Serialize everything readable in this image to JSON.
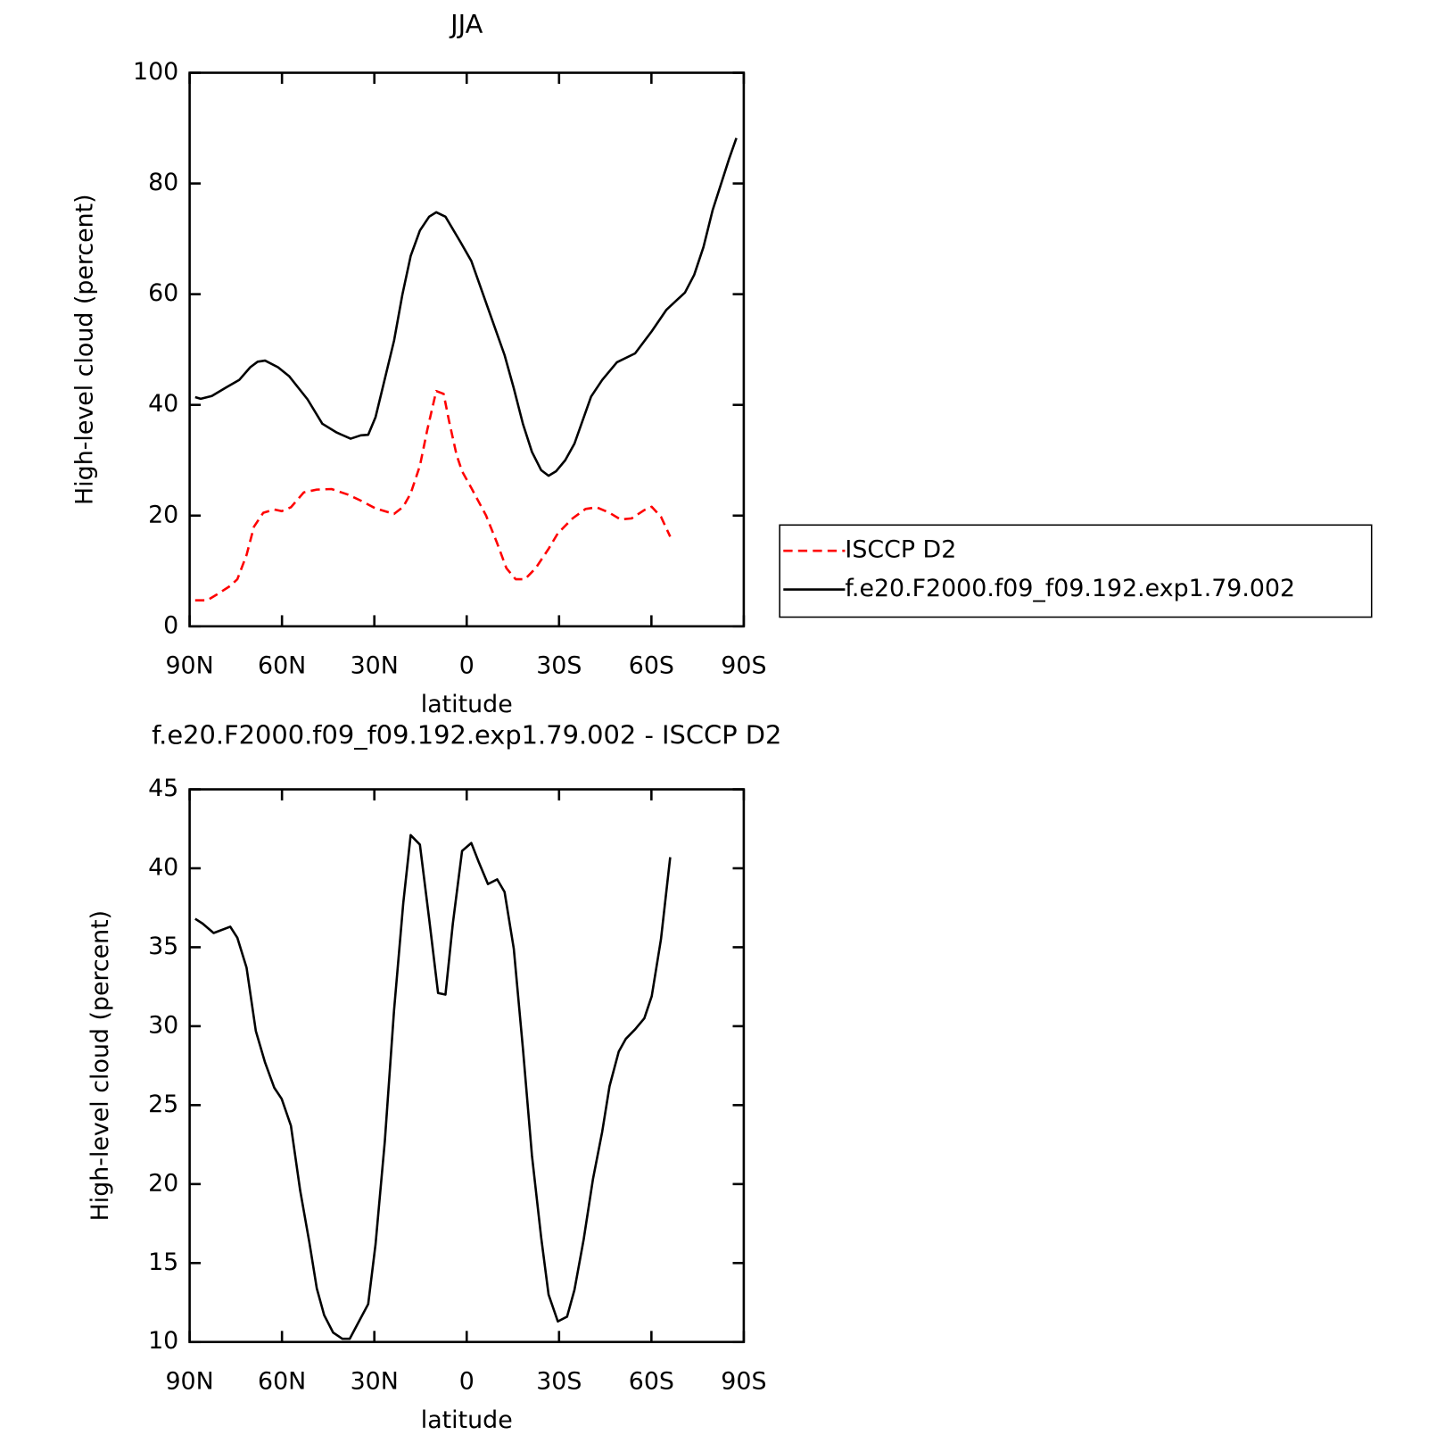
{
  "chart_data": [
    {
      "type": "line",
      "title": "JJA",
      "xlabel": "latitude",
      "ylabel": "High-level cloud (percent)",
      "xlim": [
        90,
        -90
      ],
      "ylim": [
        0,
        100
      ],
      "xticks": [
        {
          "value": 90,
          "label": "90N"
        },
        {
          "value": 60,
          "label": "60N"
        },
        {
          "value": 30,
          "label": "30N"
        },
        0,
        {
          "value": -30,
          "label": "30S"
        },
        {
          "value": -60,
          "label": "60S"
        },
        {
          "value": -90,
          "label": "90S"
        }
      ],
      "yticks": [
        0,
        20,
        40,
        60,
        80,
        100
      ],
      "legend": "right",
      "series": [
        {
          "name": "ISCCP D2",
          "color": "#ff0000",
          "linestyle": "dashed",
          "x": [
            88.2,
            84.3,
            81.0,
            76.8,
            74.5,
            71.5,
            69.1,
            66.1,
            62.5,
            60.1,
            57.1,
            52.9,
            48.7,
            43.9,
            38.6,
            34.4,
            29.6,
            23.6,
            20.6,
            18.2,
            15.2,
            12.8,
            9.9,
            7.5,
            5.7,
            3.3,
            1.5,
            -1.5,
            -6.3,
            -9.9,
            -12.9,
            -15.9,
            -18.9,
            -22.4,
            -26.6,
            -29.6,
            -34.4,
            -38.6,
            -42.2,
            -46.4,
            -50.0,
            -53.6,
            -57.7,
            -60.1,
            -63.1,
            -66.1
          ],
          "values": [
            4.7,
            4.7,
            5.8,
            7.3,
            8.5,
            12.9,
            18.0,
            20.5,
            21.1,
            20.8,
            21.5,
            24.2,
            24.7,
            24.8,
            23.8,
            22.7,
            21.3,
            20.3,
            21.6,
            24.0,
            29.0,
            35.5,
            42.5,
            42.0,
            37.0,
            31.0,
            28.0,
            25.0,
            20.0,
            15.0,
            10.5,
            8.5,
            8.5,
            10.5,
            14.0,
            16.8,
            19.5,
            21.2,
            21.5,
            20.5,
            19.3,
            19.5,
            21.0,
            21.6,
            19.8,
            16.2
          ]
        },
        {
          "name": "f.e20.F2000.f09_f09.192.exp1.79.002",
          "color": "#000000",
          "linestyle": "solid",
          "x": [
            88.2,
            86.4,
            82.8,
            78.0,
            73.9,
            70.3,
            67.9,
            65.5,
            61.3,
            57.7,
            51.7,
            46.9,
            42.2,
            37.7,
            34.4,
            32.0,
            29.6,
            27.2,
            23.6,
            20.9,
            18.2,
            15.2,
            12.2,
            9.9,
            6.9,
            2.1,
            -1.5,
            -6.9,
            -12.3,
            -15.3,
            -18.3,
            -21.2,
            -24.2,
            -26.6,
            -29.0,
            -32.0,
            -35.0,
            -40.4,
            -44.0,
            -48.8,
            -54.7,
            -60.1,
            -64.9,
            -70.9,
            -73.9,
            -76.9,
            -79.9,
            -85.2,
            -87.6
          ],
          "values": [
            41.4,
            41.1,
            41.6,
            43.2,
            44.5,
            46.8,
            47.8,
            48.0,
            46.8,
            45.2,
            41.0,
            36.6,
            35.0,
            33.9,
            34.5,
            34.6,
            37.8,
            43.3,
            51.6,
            59.9,
            66.9,
            71.5,
            74.0,
            74.8,
            74.0,
            69.5,
            66.0,
            57.5,
            49.0,
            43.0,
            36.5,
            31.5,
            28.2,
            27.2,
            28.0,
            30.0,
            33.0,
            41.5,
            44.5,
            47.7,
            49.3,
            53.3,
            57.2,
            60.3,
            63.5,
            68.5,
            75.2,
            84.4,
            88.2
          ]
        }
      ]
    },
    {
      "type": "line",
      "title": "f.e20.F2000.f09_f09.192.exp1.79.002 - ISCCP D2",
      "xlabel": "latitude",
      "ylabel": "High-level cloud (percent)",
      "xlim": [
        90,
        -90
      ],
      "ylim": [
        10,
        45
      ],
      "xticks": [
        {
          "value": 90,
          "label": "90N"
        },
        {
          "value": 60,
          "label": "60N"
        },
        {
          "value": 30,
          "label": "30N"
        },
        0,
        {
          "value": -30,
          "label": "30S"
        },
        {
          "value": -60,
          "label": "60S"
        },
        {
          "value": -90,
          "label": "90S"
        }
      ],
      "yticks": [
        10,
        15,
        20,
        25,
        30,
        35,
        40,
        45
      ],
      "series": [
        {
          "color": "#000000",
          "linestyle": "solid",
          "x": [
            88.2,
            85.8,
            82.2,
            76.8,
            74.5,
            71.5,
            68.5,
            65.5,
            62.5,
            60.1,
            57.1,
            54.1,
            51.1,
            48.7,
            46.3,
            43.4,
            40.4,
            38.0,
            35.0,
            32.0,
            29.6,
            26.6,
            23.6,
            20.6,
            18.2,
            15.2,
            12.2,
            9.3,
            6.9,
            4.5,
            1.5,
            -1.5,
            -3.9,
            -6.9,
            -9.9,
            -12.3,
            -15.3,
            -18.3,
            -21.2,
            -24.2,
            -26.6,
            -29.6,
            -32.6,
            -35.0,
            -38.0,
            -41.0,
            -44.0,
            -46.4,
            -49.4,
            -51.7,
            -54.7,
            -57.7,
            -60.1,
            -63.1,
            -66.1
          ],
          "values": [
            36.8,
            36.5,
            35.9,
            36.3,
            35.6,
            33.7,
            29.7,
            27.7,
            26.1,
            25.4,
            23.7,
            19.6,
            16.3,
            13.4,
            11.7,
            10.6,
            10.2,
            10.2,
            11.3,
            12.4,
            16.2,
            22.7,
            31.0,
            37.8,
            42.1,
            41.5,
            36.8,
            32.1,
            32.0,
            36.5,
            41.1,
            41.6,
            40.4,
            39.0,
            39.3,
            38.5,
            34.9,
            28.5,
            21.8,
            16.6,
            13.0,
            11.3,
            11.6,
            13.3,
            16.5,
            20.3,
            23.3,
            26.2,
            28.4,
            29.2,
            29.8,
            30.5,
            31.9,
            35.5,
            40.7
          ]
        }
      ]
    }
  ]
}
